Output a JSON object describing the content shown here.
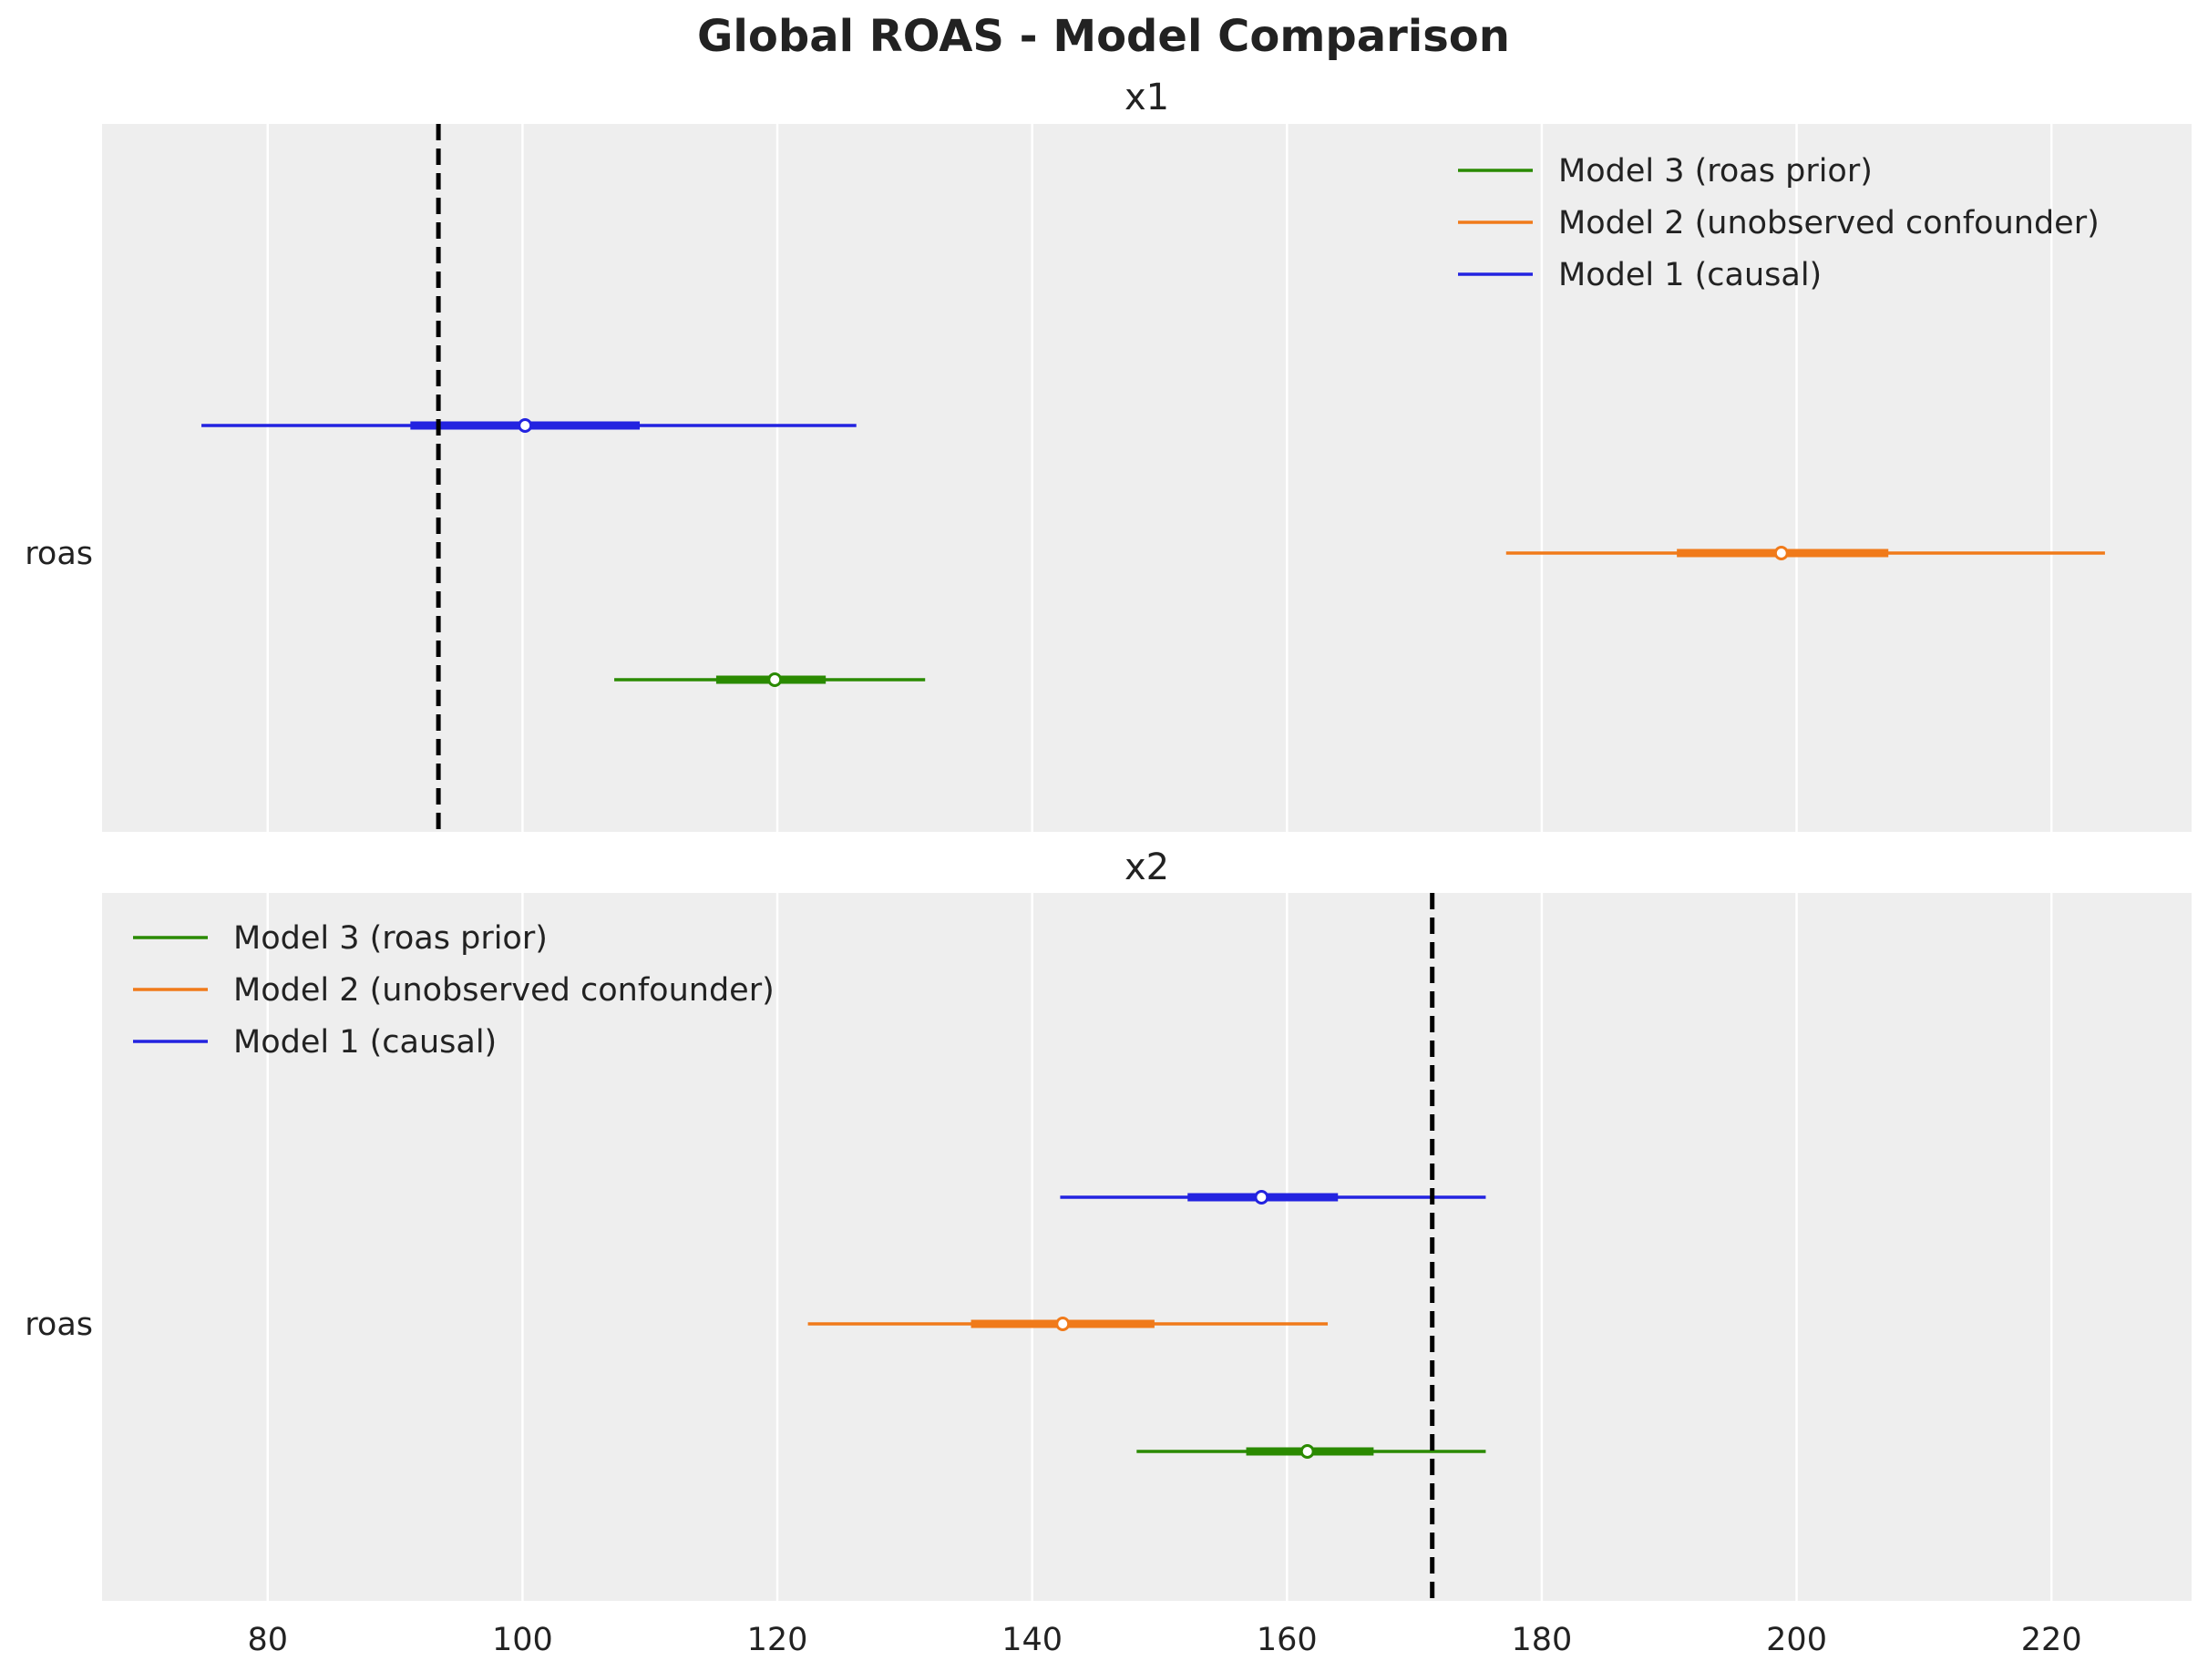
{
  "chart_data": {
    "type": "forest",
    "title": "Global ROAS - Model Comparison",
    "x_ticks": [
      80,
      100,
      120,
      140,
      160,
      180,
      200,
      220
    ],
    "xlim": [
      67,
      231
    ],
    "grid": true,
    "legend_entries": [
      {
        "name": "Model 3 (roas prior)",
        "color": "#2a8a00"
      },
      {
        "name": "Model 2 (unobserved confounder)",
        "color": "#f07a1a"
      },
      {
        "name": "Model 1 (causal)",
        "color": "#2323e0"
      }
    ],
    "panels": [
      {
        "title": "x1",
        "ylabel": "roas",
        "legend_position": "top-right",
        "reference_line": 93.4,
        "series": [
          {
            "name": "Model 1 (causal)",
            "color": "#2323e0",
            "hdi_low": 74.8,
            "hdi_high": 126.2,
            "iqr_low": 91.2,
            "iqr_high": 109.2,
            "median": 100.2
          },
          {
            "name": "Model 2 (unobserved confounder)",
            "color": "#f07a1a",
            "hdi_low": 177.2,
            "hdi_high": 224.2,
            "iqr_low": 190.6,
            "iqr_high": 207.2,
            "median": 198.8
          },
          {
            "name": "Model 3 (roas prior)",
            "color": "#2a8a00",
            "hdi_low": 107.2,
            "hdi_high": 131.6,
            "iqr_low": 115.2,
            "iqr_high": 123.8,
            "median": 119.8
          }
        ]
      },
      {
        "title": "x2",
        "ylabel": "roas",
        "legend_position": "top-left",
        "reference_line": 171.4,
        "series": [
          {
            "name": "Model 1 (causal)",
            "color": "#2323e0",
            "hdi_low": 142.2,
            "hdi_high": 175.6,
            "iqr_low": 152.2,
            "iqr_high": 164.0,
            "median": 158.0
          },
          {
            "name": "Model 2 (unobserved confounder)",
            "color": "#f07a1a",
            "hdi_low": 122.4,
            "hdi_high": 163.2,
            "iqr_low": 135.2,
            "iqr_high": 149.6,
            "median": 142.4
          },
          {
            "name": "Model 3 (roas prior)",
            "color": "#2a8a00",
            "hdi_low": 148.2,
            "hdi_high": 175.6,
            "iqr_low": 156.8,
            "iqr_high": 166.8,
            "median": 161.6
          }
        ]
      }
    ]
  }
}
